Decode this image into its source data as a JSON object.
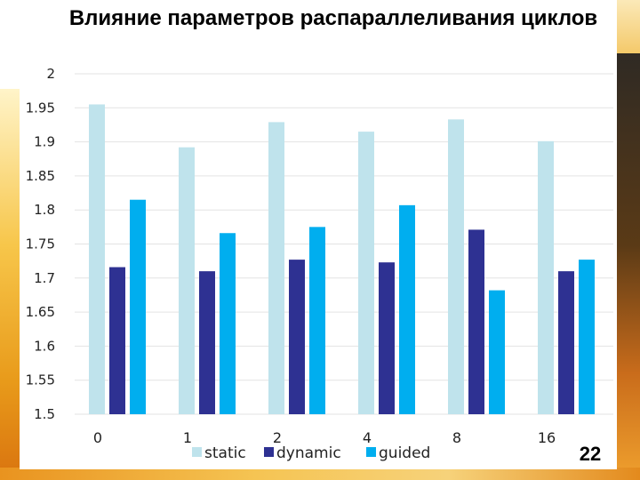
{
  "chart_data": {
    "type": "bar",
    "title": "Влияние параметров распараллеливания циклов",
    "categories": [
      "0",
      "1",
      "2",
      "4",
      "8",
      "16"
    ],
    "series": [
      {
        "name": "static",
        "color": "#bfe3ec",
        "values": [
          1.955,
          1.892,
          1.929,
          1.915,
          1.933,
          1.901
        ]
      },
      {
        "name": "dynamic",
        "color": "#2e3192",
        "values": [
          1.716,
          1.71,
          1.727,
          1.723,
          1.771,
          1.71
        ]
      },
      {
        "name": "guided",
        "color": "#00aeef",
        "values": [
          1.815,
          1.766,
          1.775,
          1.807,
          1.682,
          1.727
        ]
      }
    ],
    "ylim": [
      1.5,
      2
    ],
    "yticks": [
      "2",
      "1.95",
      "1.9",
      "1.85",
      "1.8",
      "1.75",
      "1.7",
      "1.65",
      "1.6",
      "1.55",
      "1.5"
    ],
    "xlabel": "",
    "ylabel": "",
    "grid": true,
    "legend_position": "bottom"
  },
  "slide_number": "22"
}
